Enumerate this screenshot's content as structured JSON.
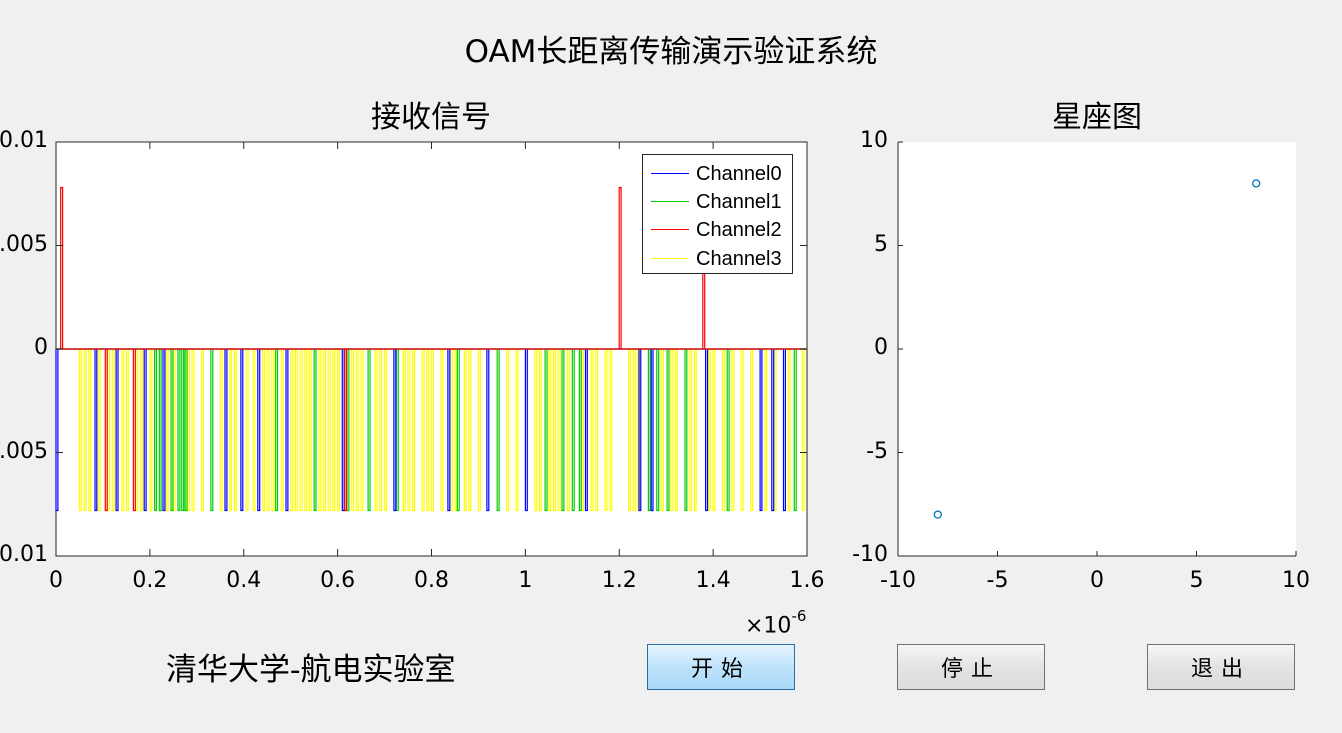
{
  "window": {
    "title": "OAM长距离传输演示验证系统"
  },
  "left_axes": {
    "title": "接收信号",
    "x_ticks": [
      "0",
      "0.2",
      "0.4",
      "0.6",
      "0.8",
      "1",
      "1.2",
      "1.4",
      "1.6"
    ],
    "y_ticks": [
      "0.01",
      ".005",
      "0",
      ".005",
      "-0.01"
    ],
    "x_exponent_base": "×10",
    "x_exponent_power": "-6",
    "legend": [
      "Channel0",
      "Channel1",
      "Channel2",
      "Channel3"
    ]
  },
  "right_axes": {
    "title": "星座图",
    "x_ticks": [
      "-10",
      "-5",
      "0",
      "5",
      "10"
    ],
    "y_ticks": [
      "10",
      "5",
      "0",
      "-5",
      "-10"
    ]
  },
  "footer": {
    "lab_name": "清华大学-航电实验室",
    "start_label": "开始",
    "stop_label": "停止",
    "exit_label": "退出"
  },
  "colors": {
    "channel0": "#0000ff",
    "channel1": "#00cc00",
    "channel2": "#ff0000",
    "channel3": "#ffff00",
    "scatter": "#0072bd"
  },
  "chart_data": [
    {
      "type": "line",
      "title": "接收信号",
      "xlim": [
        0,
        1.6e-06
      ],
      "ylim": [
        -0.01,
        0.01
      ],
      "series": [
        {
          "name": "Channel0",
          "baseline": 0,
          "pulse_value": -0.0078,
          "pulse_x": [
            0.0,
            0.083,
            0.128,
            0.188,
            0.228,
            0.36,
            0.394,
            0.43,
            0.49,
            0.61,
            0.72,
            0.835,
            0.918,
            1.0,
            1.128,
            1.242,
            1.268,
            1.384,
            1.5,
            1.525,
            1.55
          ]
        },
        {
          "name": "Channel1",
          "baseline": 0,
          "pulse_value": -0.0078,
          "pulse_x": [
            0.21,
            0.22,
            0.245,
            0.26,
            0.268,
            0.275,
            0.33,
            0.468,
            0.55,
            0.62,
            0.665,
            0.725,
            0.855,
            0.94,
            1.042,
            1.078,
            1.1,
            1.115,
            1.262,
            1.28,
            1.302,
            1.34,
            1.43,
            1.573
          ]
        },
        {
          "name": "Channel2",
          "baseline": 0,
          "spikes": [
            {
              "x": 0.01,
              "y": 0.0078
            },
            {
              "x": 1.2,
              "y": 0.0078
            },
            {
              "x": 1.378,
              "y": 0.0038
            }
          ],
          "pulse_x": [
            0.105,
            0.165,
            0.615
          ]
        },
        {
          "name": "Channel3",
          "baseline": 0,
          "pulse_value": -0.0078,
          "pulse_x": [
            0.05,
            0.06,
            0.07,
            0.09,
            0.11,
            0.12,
            0.14,
            0.15,
            0.17,
            0.18,
            0.2,
            0.235,
            0.25,
            0.28,
            0.29,
            0.31,
            0.35,
            0.37,
            0.38,
            0.405,
            0.42,
            0.44,
            0.45,
            0.46,
            0.48,
            0.5,
            0.51,
            0.52,
            0.53,
            0.54,
            0.56,
            0.57,
            0.58,
            0.59,
            0.6,
            0.63,
            0.64,
            0.65,
            0.68,
            0.69,
            0.7,
            0.74,
            0.75,
            0.76,
            0.78,
            0.79,
            0.8,
            0.82,
            0.84,
            0.85,
            0.87,
            0.88,
            0.9,
            0.96,
            0.98,
            1.02,
            1.03,
            1.05,
            1.06,
            1.07,
            1.09,
            1.12,
            1.14,
            1.15,
            1.17,
            1.18,
            1.22,
            1.23,
            1.24,
            1.29,
            1.31,
            1.32,
            1.35,
            1.36,
            1.39,
            1.4,
            1.42,
            1.44,
            1.46,
            1.48,
            1.51,
            1.53,
            1.56,
            1.59
          ]
        }
      ]
    },
    {
      "type": "scatter",
      "title": "星座图",
      "xlim": [
        -10,
        10
      ],
      "ylim": [
        -10,
        10
      ],
      "points": [
        {
          "x": -8,
          "y": -8
        },
        {
          "x": 8,
          "y": 8
        }
      ]
    }
  ]
}
